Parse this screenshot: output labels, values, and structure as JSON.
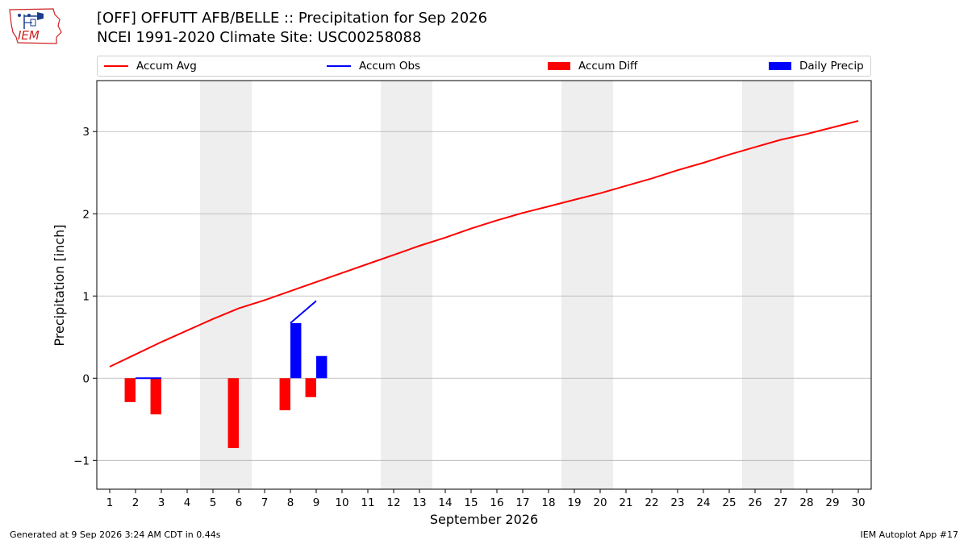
{
  "logo": {
    "text": "IEM"
  },
  "title": "[OFF] OFFUTT AFB/BELLE :: Precipitation for Sep 2026",
  "subtitle": "NCEI 1991-2020 Climate Site: USC00258088",
  "footer": {
    "left": "Generated at 9 Sep 2026 3:24 AM CDT in 0.44s",
    "right": "IEM Autoplot App #17"
  },
  "colors": {
    "avg": "#ff0000",
    "obs": "#0000ff",
    "diff": "#ff0000",
    "daily": "#0000ff",
    "weekend": "#eeeeee",
    "grid": "#b0b0b0"
  },
  "chart_data": {
    "type": "line",
    "xlabel": "September 2026",
    "ylabel": "Precipitation [inch]",
    "xlim": [
      0.5,
      30.5
    ],
    "ylim": [
      -1.35,
      3.62
    ],
    "xticks": [
      1,
      2,
      3,
      4,
      5,
      6,
      7,
      8,
      9,
      10,
      11,
      12,
      13,
      14,
      15,
      16,
      17,
      18,
      19,
      20,
      21,
      22,
      23,
      24,
      25,
      26,
      27,
      28,
      29,
      30
    ],
    "yticks": [
      -1,
      0,
      1,
      2,
      3
    ],
    "ytick_labels": [
      "−1",
      "0",
      "1",
      "2",
      "3"
    ],
    "grid": "horizontal",
    "legend_position": "top",
    "weekend_shading": [
      [
        5,
        6
      ],
      [
        12,
        13
      ],
      [
        19,
        20
      ],
      [
        26,
        27
      ]
    ],
    "series": [
      {
        "name": "Accum Avg",
        "type": "line",
        "x": [
          1,
          2,
          3,
          4,
          5,
          6,
          7,
          8,
          9,
          10,
          11,
          12,
          13,
          14,
          15,
          16,
          17,
          18,
          19,
          20,
          21,
          22,
          23,
          24,
          25,
          26,
          27,
          28,
          29,
          30
        ],
        "values": [
          0.14,
          0.29,
          0.44,
          0.58,
          0.72,
          0.85,
          0.95,
          1.06,
          1.17,
          1.28,
          1.39,
          1.5,
          1.61,
          1.71,
          1.82,
          1.92,
          2.01,
          2.09,
          2.17,
          2.25,
          2.34,
          2.43,
          2.53,
          2.62,
          2.72,
          2.81,
          2.9,
          2.97,
          3.05,
          3.13
        ]
      },
      {
        "name": "Accum Obs",
        "type": "line",
        "x": [
          2,
          3,
          null,
          8,
          9
        ],
        "values": [
          0.0,
          0.0,
          null,
          0.67,
          0.94
        ]
      },
      {
        "name": "Accum Diff",
        "type": "bar",
        "x": [
          2,
          3,
          6,
          8,
          9
        ],
        "values": [
          -0.29,
          -0.44,
          -0.85,
          -0.39,
          -0.23
        ]
      },
      {
        "name": "Daily Precip",
        "type": "bar",
        "x": [
          8,
          9
        ],
        "values": [
          0.67,
          0.27
        ]
      }
    ]
  }
}
